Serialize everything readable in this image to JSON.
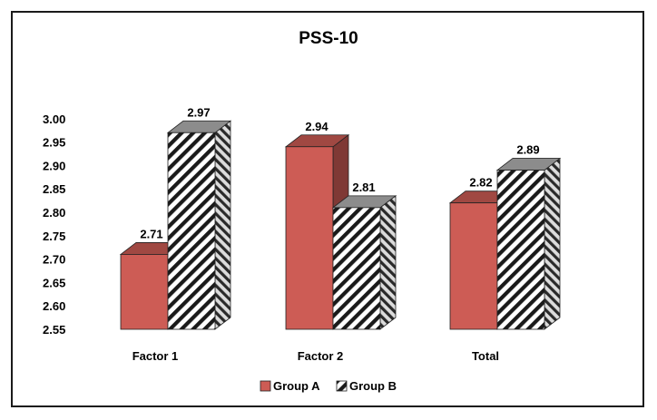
{
  "chart_data": {
    "type": "bar",
    "title": "PSS-10",
    "xlabel": "",
    "ylabel": "",
    "categories": [
      "Factor 1",
      "Factor 2",
      "Total"
    ],
    "series": [
      {
        "name": "Group A",
        "values": [
          2.71,
          2.94,
          2.82
        ],
        "labels": [
          "2.71",
          "2.94",
          "2.82"
        ],
        "color": "#cd5c55",
        "pattern": "solid"
      },
      {
        "name": "Group B",
        "values": [
          2.97,
          2.81,
          2.89
        ],
        "labels": [
          "2.97",
          "2.81",
          "2.89"
        ],
        "color": "#ffffff",
        "pattern": "diagonal-hatch"
      }
    ],
    "ylim": [
      2.55,
      3.0
    ],
    "yticks": [
      "3.00",
      "2.95",
      "2.90",
      "2.85",
      "2.80",
      "2.75",
      "2.70",
      "2.65",
      "2.60",
      "2.55"
    ],
    "legend_position": "bottom",
    "grid": false,
    "style": "3d-column"
  }
}
